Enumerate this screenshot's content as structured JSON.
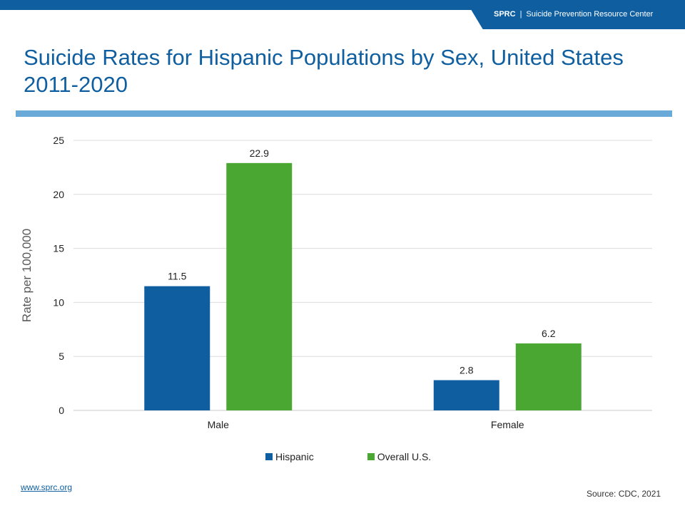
{
  "header": {
    "org_abbr": "SPRC",
    "org_separator": "|",
    "org_name": "Suicide Prevention Resource Center"
  },
  "colors": {
    "brand_blue": "#0f5fa0",
    "rule_blue": "#6aaad8",
    "hispanic": "#0f5fa0",
    "overall": "#4aa832"
  },
  "chart_data": {
    "type": "bar",
    "title": "Suicide Rates for Hispanic Populations by Sex, United States 2011-2020",
    "categories": [
      "Male",
      "Female"
    ],
    "series": [
      {
        "name": "Hispanic",
        "values": [
          11.5,
          2.8
        ],
        "color": "#0f5fa0"
      },
      {
        "name": "Overall U.S.",
        "values": [
          22.9,
          6.2
        ],
        "color": "#4aa832"
      }
    ],
    "xlabel": "",
    "ylabel": "Rate per 100,000",
    "ylim": [
      0,
      25
    ],
    "yticks": [
      0,
      5,
      10,
      15,
      20,
      25
    ],
    "data_labels": true,
    "grid": true,
    "legend": "bottom"
  },
  "footer": {
    "website": "www.sprc.org",
    "source": "Source: CDC, 2021"
  }
}
